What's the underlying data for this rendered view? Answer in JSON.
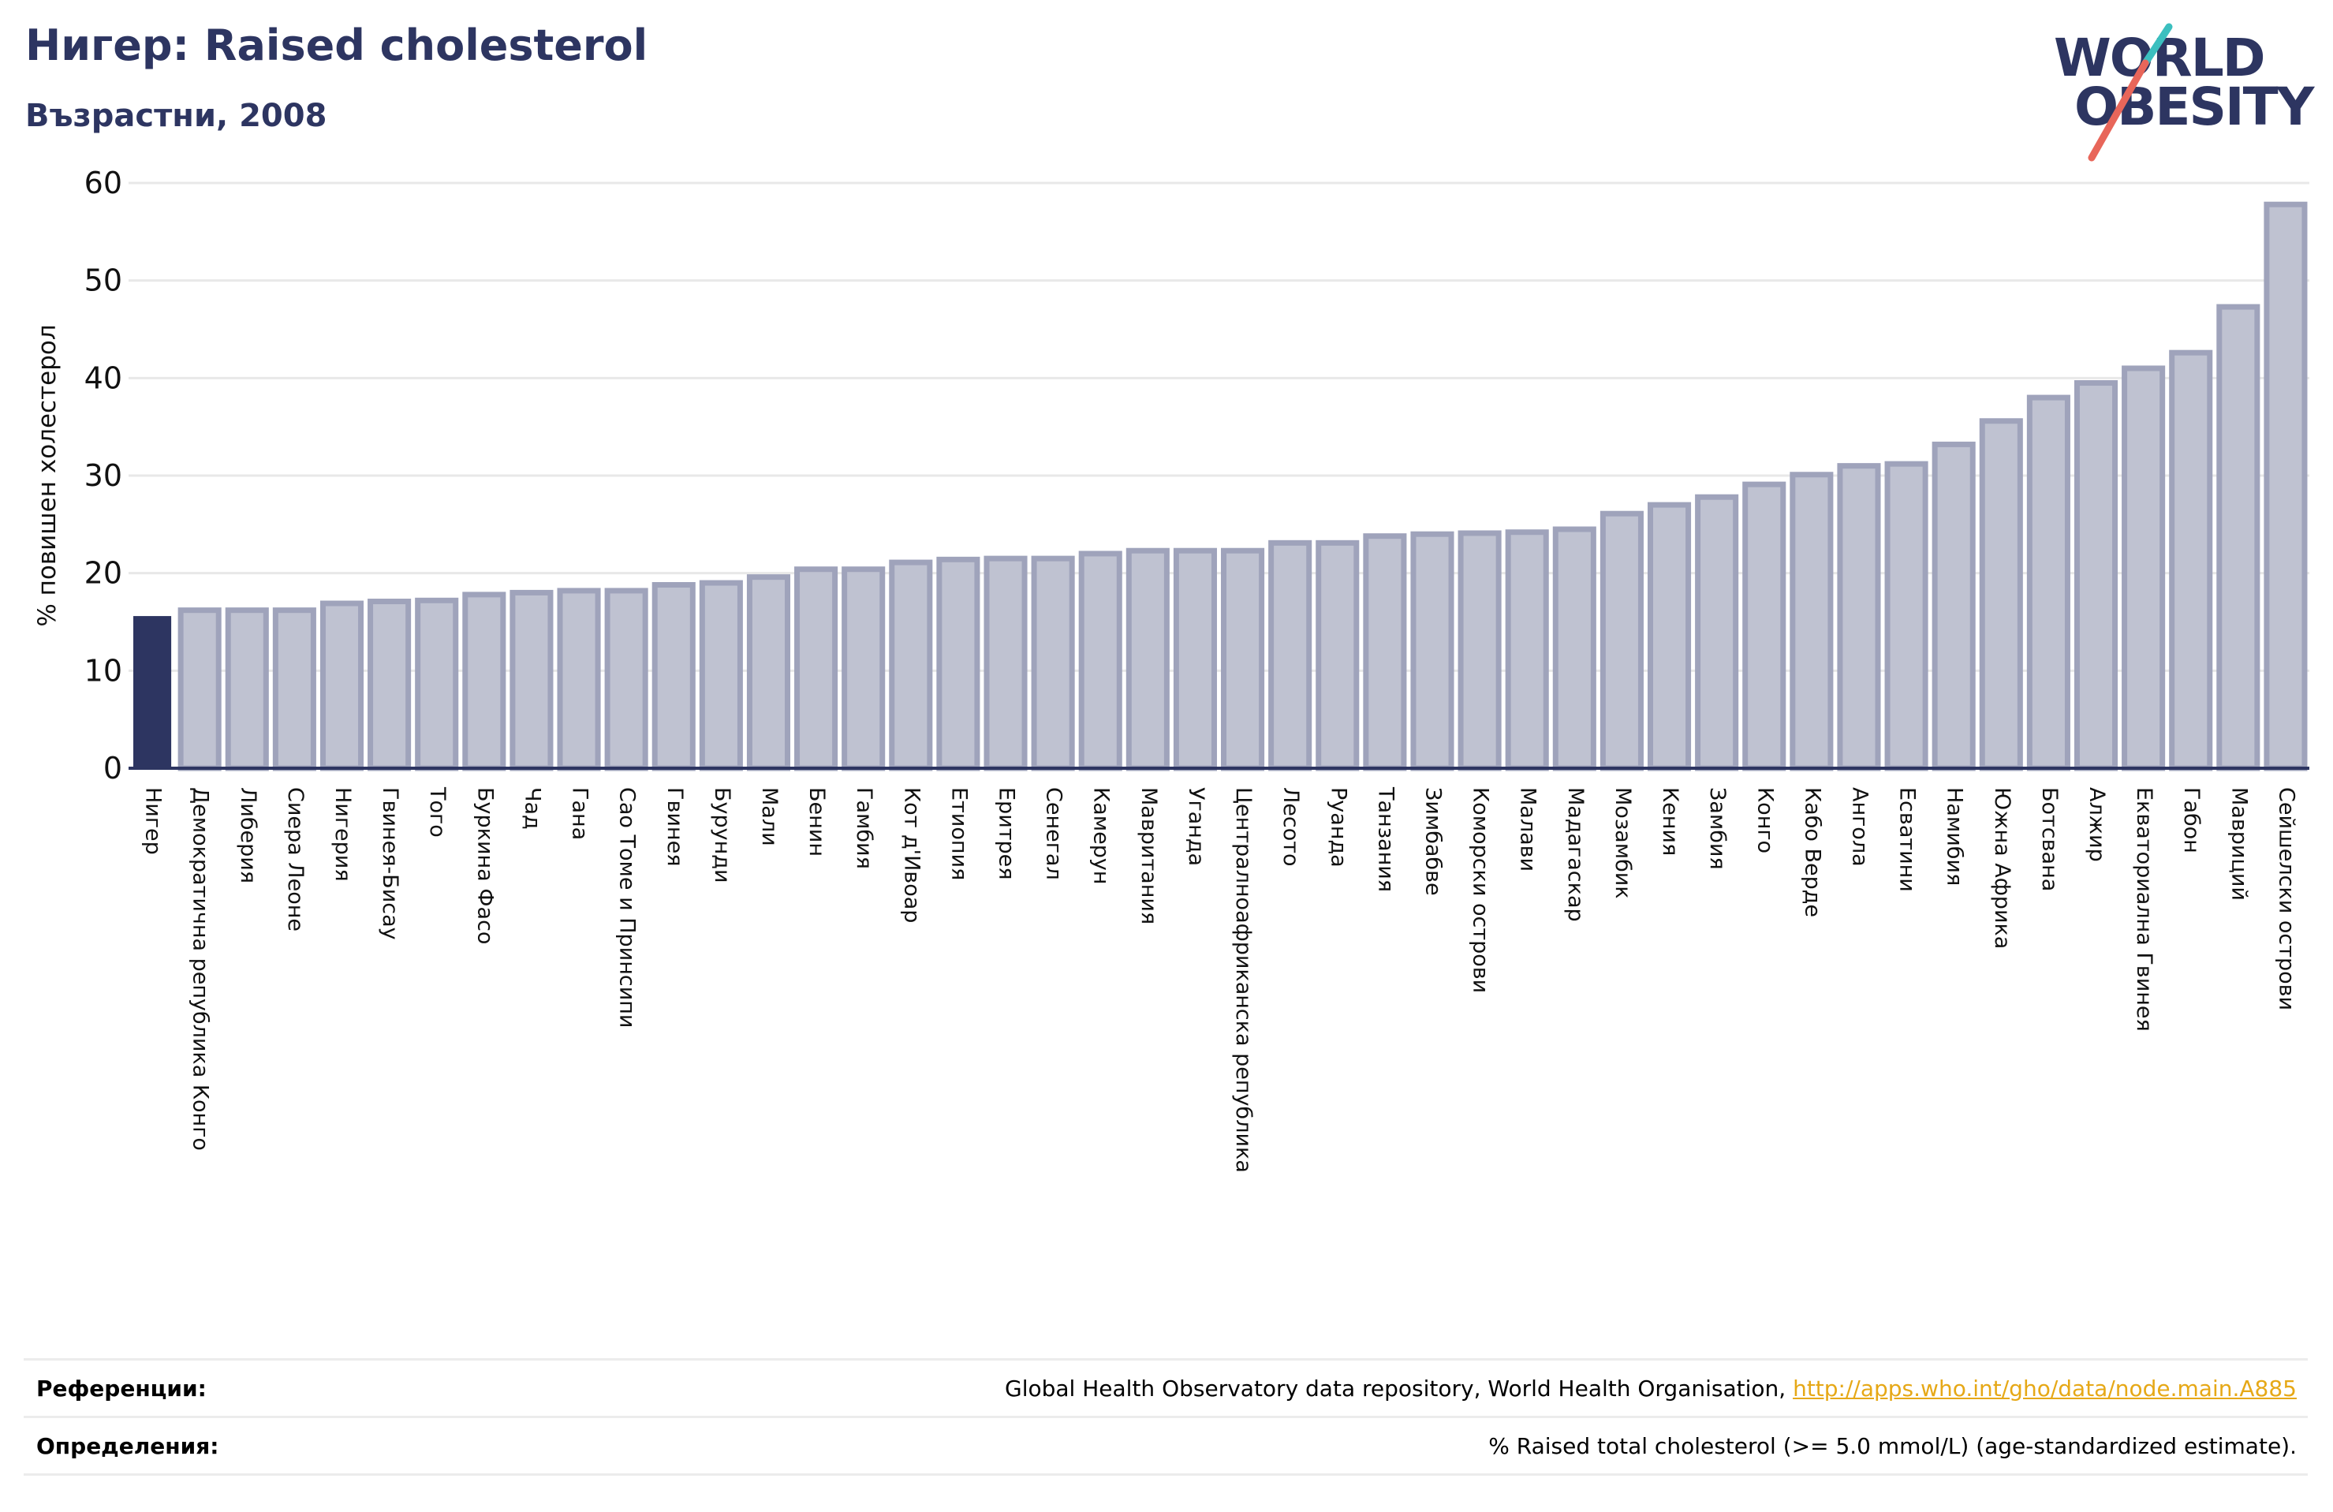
{
  "header": {
    "title": "Нигер: Raised cholesterol",
    "subtitle": "Възрастни, 2008"
  },
  "logo": {
    "line1": "WORLD",
    "line2": "OBESITY"
  },
  "colors": {
    "highlight": "#2d3561",
    "bar_fill": "#bfc2d1",
    "bar_stroke": "#9fa3bb",
    "grid": "#e8e8e8",
    "accent_teal": "#3bbfbf",
    "accent_coral": "#e8665a",
    "link": "#e6a817"
  },
  "chart_data": {
    "type": "bar",
    "ylabel": "% повишен холестерол",
    "ylim": [
      0,
      60
    ],
    "yticks": [
      0,
      10,
      20,
      30,
      40,
      50,
      60
    ],
    "grid": true,
    "highlight_category": "Нигер",
    "categories": [
      "Нигер",
      "Демократична република Конго",
      "Либерия",
      "Сиера Леоне",
      "Нигерия",
      "Гвинея-Бисау",
      "Того",
      "Буркина Фасо",
      "Чад",
      "Гана",
      "Сао Томе и Принсипи",
      "Гвинея",
      "Бурунди",
      "Мали",
      "Бенин",
      "Гамбия",
      "Кот д'Ивоар",
      "Етиопия",
      "Еритрея",
      "Сенегал",
      "Камерун",
      "Мавритания",
      "Уганда",
      "Централноафриканска република",
      "Лесото",
      "Руанда",
      "Танзания",
      "Зимбабве",
      "Коморски острови",
      "Малави",
      "Мадагаскар",
      "Мозамбик",
      "Кения",
      "Замбия",
      "Конго",
      "Кабо Верде",
      "Ангола",
      "Есватини",
      "Намибия",
      "Южна Африка",
      "Ботсвана",
      "Алжир",
      "Екваториална Гвинея",
      "Габон",
      "Мавриций",
      "Сейшелски острови"
    ],
    "values": [
      15.6,
      16.2,
      16.2,
      16.2,
      16.9,
      17.1,
      17.2,
      17.8,
      18.0,
      18.2,
      18.2,
      18.8,
      19.0,
      19.6,
      20.4,
      20.4,
      21.1,
      21.4,
      21.5,
      21.5,
      22.0,
      22.3,
      22.3,
      22.3,
      23.1,
      23.1,
      23.8,
      24.0,
      24.1,
      24.2,
      24.5,
      26.1,
      27.0,
      27.8,
      29.1,
      30.1,
      31.0,
      31.2,
      33.2,
      35.6,
      38.0,
      39.5,
      41.0,
      42.6,
      47.3,
      57.8
    ]
  },
  "references": {
    "ref_label": "Референции:",
    "ref_text": "Global Health Observatory data repository, World Health Organisation, ",
    "ref_link": "http://apps.who.int/gho/data/node.main.A885",
    "def_label": "Определения:",
    "def_text": "% Raised total cholesterol (>= 5.0 mmol/L) (age-standardized estimate)."
  }
}
